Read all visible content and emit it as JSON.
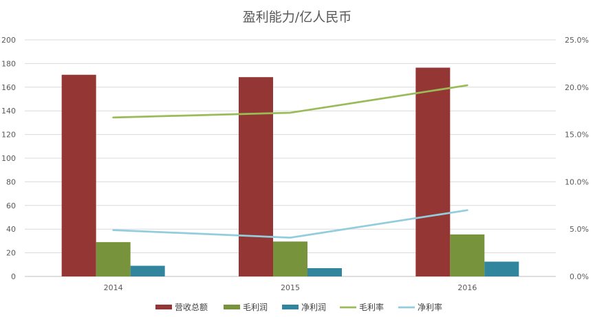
{
  "chart_data": {
    "type": "bar",
    "title": "盈利能力/亿人民币",
    "categories": [
      "2014",
      "2015",
      "2016"
    ],
    "series": [
      {
        "name": "营收总额",
        "kind": "bar",
        "axis": "left",
        "color": "#943634",
        "values": [
          170.5,
          168.5,
          176.5
        ]
      },
      {
        "name": "毛利润",
        "kind": "bar",
        "axis": "left",
        "color": "#77933C",
        "values": [
          29.0,
          29.5,
          35.5
        ]
      },
      {
        "name": "净利润",
        "kind": "bar",
        "axis": "left",
        "color": "#31859C",
        "values": [
          9.0,
          7.0,
          12.5
        ]
      },
      {
        "name": "毛利率",
        "kind": "line",
        "axis": "right",
        "color": "#9BBB59",
        "values": [
          16.8,
          17.3,
          20.2
        ]
      },
      {
        "name": "净利率",
        "kind": "line",
        "axis": "right",
        "color": "#93CDDD",
        "values": [
          4.9,
          4.1,
          7.0
        ]
      }
    ],
    "y_left": {
      "min": 0,
      "max": 200,
      "step": 20,
      "ticks": [
        "0",
        "20",
        "40",
        "60",
        "80",
        "100",
        "120",
        "140",
        "160",
        "180",
        "200"
      ]
    },
    "y_right": {
      "min": 0,
      "max": 25,
      "step": 5,
      "ticks": [
        "0.0%",
        "5.0%",
        "10.0%",
        "15.0%",
        "20.0%",
        "25.0%"
      ]
    },
    "grid": true,
    "legend_position": "bottom"
  }
}
